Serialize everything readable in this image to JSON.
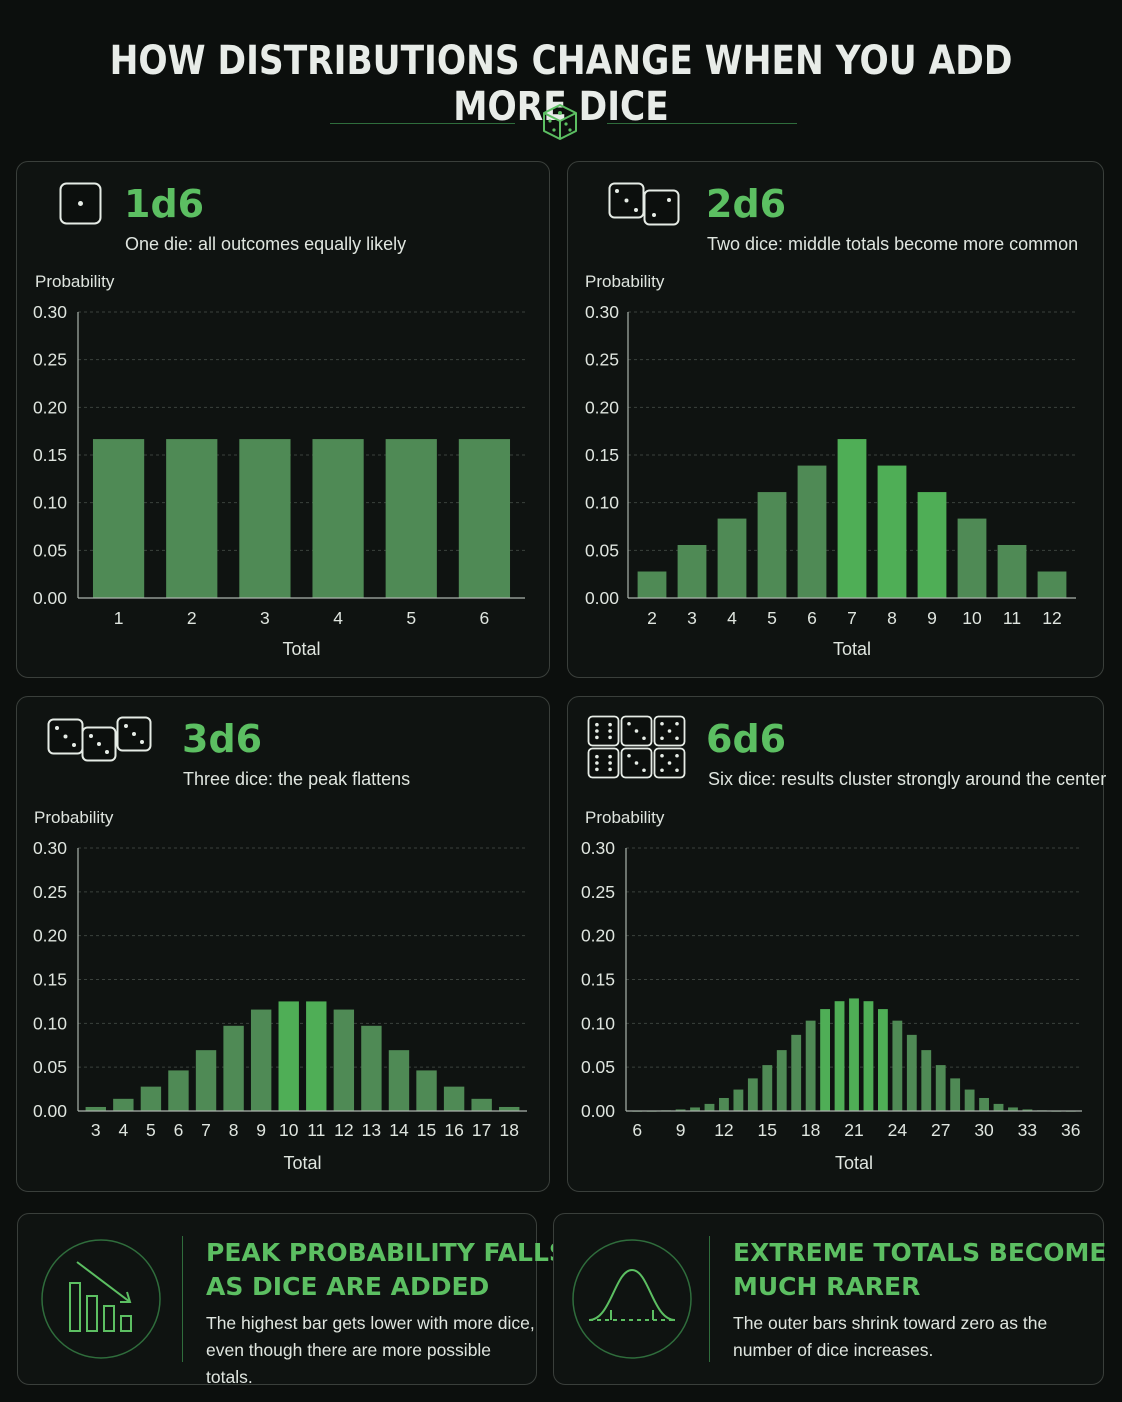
{
  "title": "HOW DISTRIBUTIONS CHANGE WHEN YOU ADD MORE DICE",
  "colors": {
    "accent": "#5cbf62",
    "bar": "#4f8a55",
    "bar_peak": "#4fae56",
    "background": "#0c0f0d"
  },
  "panels": [
    {
      "heading": "1d6",
      "subtitle": "One die: all outcomes equally likely"
    },
    {
      "heading": "2d6",
      "subtitle": "Two dice: middle totals become more common"
    },
    {
      "heading": "3d6",
      "subtitle": "Three dice: the peak flattens"
    },
    {
      "heading": "6d6",
      "subtitle": "Six dice: results cluster strongly around the center"
    }
  ],
  "chart_data": [
    {
      "type": "bar",
      "ylabel": "Probability",
      "xlabel": "Total",
      "ylim": [
        0,
        0.3
      ],
      "yticks": [
        "0.00",
        "0.05",
        "0.10",
        "0.15",
        "0.20",
        "0.25",
        "0.30"
      ],
      "categories": [
        1,
        2,
        3,
        4,
        5,
        6
      ],
      "xtick_labels": [
        "1",
        "2",
        "3",
        "4",
        "5",
        "6"
      ],
      "values": [
        0.1667,
        0.1667,
        0.1667,
        0.1667,
        0.1667,
        0.1667
      ],
      "highlight": []
    },
    {
      "type": "bar",
      "ylabel": "Probability",
      "xlabel": "Total",
      "ylim": [
        0,
        0.3
      ],
      "yticks": [
        "0.00",
        "0.05",
        "0.10",
        "0.15",
        "0.20",
        "0.25",
        "0.30"
      ],
      "categories": [
        2,
        3,
        4,
        5,
        6,
        7,
        8,
        9,
        10,
        11,
        12
      ],
      "xtick_labels": [
        "2",
        "3",
        "4",
        "5",
        "6",
        "7",
        "8",
        "9",
        "10",
        "11",
        "12"
      ],
      "values": [
        0.0278,
        0.0556,
        0.0833,
        0.1111,
        0.1389,
        0.1667,
        0.1389,
        0.1111,
        0.0833,
        0.0556,
        0.0278
      ],
      "highlight": [
        5,
        6,
        7
      ]
    },
    {
      "type": "bar",
      "ylabel": "Probability",
      "xlabel": "Total",
      "ylim": [
        0,
        0.3
      ],
      "yticks": [
        "0.00",
        "0.05",
        "0.10",
        "0.15",
        "0.20",
        "0.25",
        "0.30"
      ],
      "categories": [
        3,
        4,
        5,
        6,
        7,
        8,
        9,
        10,
        11,
        12,
        13,
        14,
        15,
        16,
        17,
        18
      ],
      "xtick_labels": [
        "3",
        "4",
        "5",
        "6",
        "7",
        "8",
        "9",
        "10",
        "11",
        "12",
        "13",
        "14",
        "15",
        "16",
        "17",
        "18"
      ],
      "values": [
        0.0046,
        0.0139,
        0.0278,
        0.0463,
        0.0694,
        0.0972,
        0.1157,
        0.125,
        0.125,
        0.1157,
        0.0972,
        0.0694,
        0.0463,
        0.0278,
        0.0139,
        0.0046
      ],
      "highlight": [
        7,
        8
      ]
    },
    {
      "type": "bar",
      "ylabel": "Probability",
      "xlabel": "Total",
      "ylim": [
        0,
        0.3
      ],
      "yticks": [
        "0.00",
        "0.05",
        "0.10",
        "0.15",
        "0.20",
        "0.25",
        "0.30"
      ],
      "categories": [
        6,
        7,
        8,
        9,
        10,
        11,
        12,
        13,
        14,
        15,
        16,
        17,
        18,
        19,
        20,
        21,
        22,
        23,
        24,
        25,
        26,
        27,
        28,
        29,
        30,
        31,
        32,
        33,
        34,
        35,
        36
      ],
      "xtick_labels": [
        "6",
        "9",
        "12",
        "15",
        "18",
        "21",
        "24",
        "27",
        "30",
        "33",
        "36"
      ],
      "xtick_values": [
        6,
        9,
        12,
        15,
        18,
        21,
        24,
        27,
        30,
        33,
        36
      ],
      "values": [
        0.0001,
        0.0001,
        0.0005,
        0.0012,
        0.0027,
        0.0054,
        0.0099,
        0.0163,
        0.0248,
        0.0349,
        0.0463,
        0.0579,
        0.0687,
        0.0775,
        0.0835,
        0.0856,
        0.0835,
        0.0775,
        0.0687,
        0.0579,
        0.0463,
        0.0349,
        0.0248,
        0.0163,
        0.0099,
        0.0054,
        0.0027,
        0.0012,
        0.0005,
        0.0001,
        0.0001
      ],
      "display_scale": 1.5,
      "highlight": [
        13,
        14,
        15,
        16,
        17
      ]
    }
  ],
  "insights": [
    {
      "title_line1": "PEAK PROBABILITY FALLS",
      "title_line2": "AS DICE ARE ADDED",
      "text_line1": "The highest bar gets lower with more dice,",
      "text_line2": "even though there are more possible totals.",
      "icon": "falling-bars-icon"
    },
    {
      "title_line1": "EXTREME TOTALS BECOME",
      "title_line2": "MUCH RARER",
      "text_line1": "The outer bars shrink toward zero as the",
      "text_line2": "number of dice increases.",
      "icon": "bell-curve-icon"
    }
  ]
}
